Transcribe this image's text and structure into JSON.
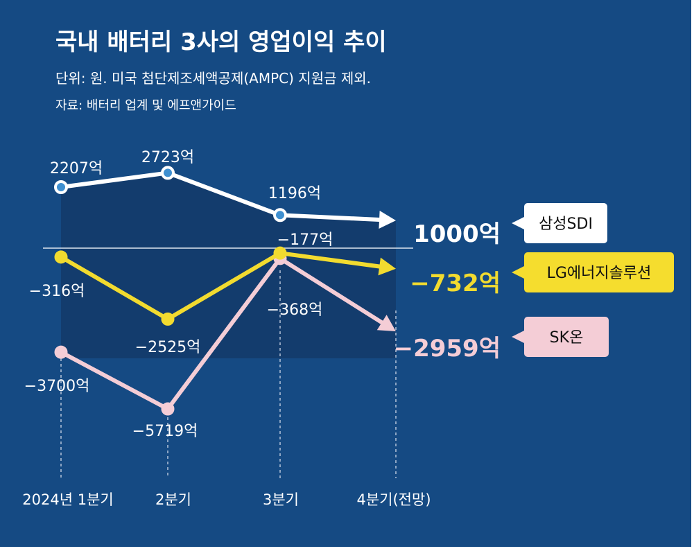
{
  "chart_data": {
    "type": "line",
    "title": "국내 배터리 3사의 영업이익 추이",
    "subtitle": "단위: 원. 미국 첨단제조세액공제(AMPC) 지원금 제외.",
    "source": "자료: 배터리 업계 및 에프앤가이드",
    "categories": [
      "2024년 1분기",
      "2분기",
      "3분기",
      "4분기(전망)"
    ],
    "unit_suffix": "억",
    "series": [
      {
        "name": "삼성SDI",
        "values": [
          2207,
          2723,
          1196,
          1000
        ],
        "point_labels": [
          "2207억",
          "2723억",
          "1196억",
          null
        ],
        "end_label": "1000억",
        "line_color": "#ffffff",
        "marker_fill": "#3e8fd0",
        "end_label_color": "#ffffff",
        "tag_bg": "#ffffff"
      },
      {
        "name": "LG에너지솔루션",
        "values": [
          -316,
          -2525,
          -177,
          -732
        ],
        "point_labels": [
          "−316억",
          "−2525억",
          "−177억",
          null
        ],
        "end_label": "−732억",
        "line_color": "#f2db2f",
        "marker_fill": "#f2db2f",
        "end_label_color": "#f2db2f",
        "tag_bg": "#f5dd2e"
      },
      {
        "name": "SK온",
        "values": [
          -3700,
          -5719,
          -368,
          -2959
        ],
        "point_labels": [
          "−3700억",
          "−5719억",
          "−368억",
          null
        ],
        "end_label": "−2959억",
        "line_color": "#f4cdd6",
        "marker_fill": "#f4cdd6",
        "end_label_color": "#f4cdd6",
        "tag_bg": "#f4cdd6"
      }
    ],
    "zero_line": true,
    "grid": false
  },
  "colors": {
    "background": "#154a83",
    "area_fill": "#133c6d",
    "text": "#ffffff"
  }
}
